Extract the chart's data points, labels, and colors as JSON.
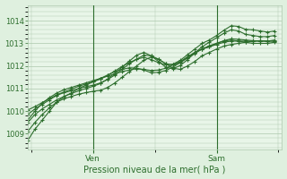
{
  "xlabel": "Pression niveau de la mer( hPa )",
  "bg_color": "#dff0df",
  "plot_bg_color": "#e8f5e8",
  "grid_color": "#adc8ad",
  "line_color": "#2d6e2d",
  "ylim": [
    1008.3,
    1014.7
  ],
  "xlim": [
    0,
    35
  ],
  "yticks": [
    1009,
    1010,
    1011,
    1012,
    1013,
    1014
  ],
  "ven_x": 9,
  "sam_x": 26,
  "series": [
    [
      1008.7,
      1009.2,
      1009.6,
      1010.0,
      1010.4,
      1010.65,
      1010.8,
      1011.0,
      1011.15,
      1011.3,
      1011.45,
      1011.6,
      1011.75,
      1011.85,
      1011.92,
      1011.9,
      1011.82,
      1011.7,
      1011.72,
      1011.8,
      1011.95,
      1012.15,
      1012.4,
      1012.6,
      1012.75,
      1012.85,
      1013.0,
      1013.1,
      1013.15,
      1013.1,
      1013.05,
      1013.0,
      1013.0,
      1013.0,
      1013.05
    ],
    [
      1009.6,
      1010.0,
      1010.35,
      1010.6,
      1010.8,
      1010.95,
      1011.05,
      1011.15,
      1011.25,
      1011.35,
      1011.45,
      1011.55,
      1011.65,
      1011.75,
      1011.82,
      1011.88,
      1011.85,
      1011.8,
      1011.82,
      1011.9,
      1012.05,
      1012.2,
      1012.4,
      1012.6,
      1012.75,
      1012.85,
      1012.95,
      1013.05,
      1013.1,
      1013.1,
      1013.1,
      1013.1,
      1013.1,
      1013.1,
      1013.15
    ],
    [
      1009.1,
      1009.5,
      1009.85,
      1010.15,
      1010.4,
      1010.55,
      1010.65,
      1010.75,
      1010.82,
      1010.88,
      1010.92,
      1011.05,
      1011.25,
      1011.5,
      1011.75,
      1012.0,
      1012.25,
      1012.4,
      1012.3,
      1012.1,
      1011.9,
      1011.85,
      1012.0,
      1012.2,
      1012.45,
      1012.6,
      1012.75,
      1012.88,
      1012.95,
      1013.0,
      1013.05,
      1013.1,
      1013.12,
      1013.1,
      1013.1
    ],
    [
      1009.85,
      1010.1,
      1010.3,
      1010.5,
      1010.7,
      1010.82,
      1010.9,
      1011.0,
      1011.08,
      1011.15,
      1011.25,
      1011.4,
      1011.6,
      1011.85,
      1012.1,
      1012.3,
      1012.48,
      1012.45,
      1012.3,
      1012.1,
      1012.05,
      1012.15,
      1012.35,
      1012.55,
      1012.75,
      1012.9,
      1013.0,
      1013.12,
      1013.2,
      1013.18,
      1013.15,
      1013.12,
      1013.1,
      1013.1,
      1013.1
    ],
    [
      1009.5,
      1009.85,
      1010.1,
      1010.3,
      1010.5,
      1010.65,
      1010.78,
      1010.9,
      1011.0,
      1011.1,
      1011.22,
      1011.42,
      1011.68,
      1011.95,
      1012.22,
      1012.48,
      1012.6,
      1012.45,
      1012.2,
      1011.95,
      1011.88,
      1012.02,
      1012.28,
      1012.58,
      1012.85,
      1013.05,
      1013.25,
      1013.45,
      1013.6,
      1013.55,
      1013.4,
      1013.35,
      1013.3,
      1013.3,
      1013.35
    ],
    [
      1010.05,
      1010.2,
      1010.38,
      1010.55,
      1010.72,
      1010.85,
      1010.97,
      1011.1,
      1011.2,
      1011.3,
      1011.42,
      1011.58,
      1011.78,
      1011.98,
      1012.15,
      1012.3,
      1012.38,
      1012.28,
      1012.15,
      1012.05,
      1012.08,
      1012.25,
      1012.5,
      1012.75,
      1013.0,
      1013.15,
      1013.35,
      1013.58,
      1013.78,
      1013.75,
      1013.62,
      1013.6,
      1013.55,
      1013.5,
      1013.55
    ]
  ]
}
